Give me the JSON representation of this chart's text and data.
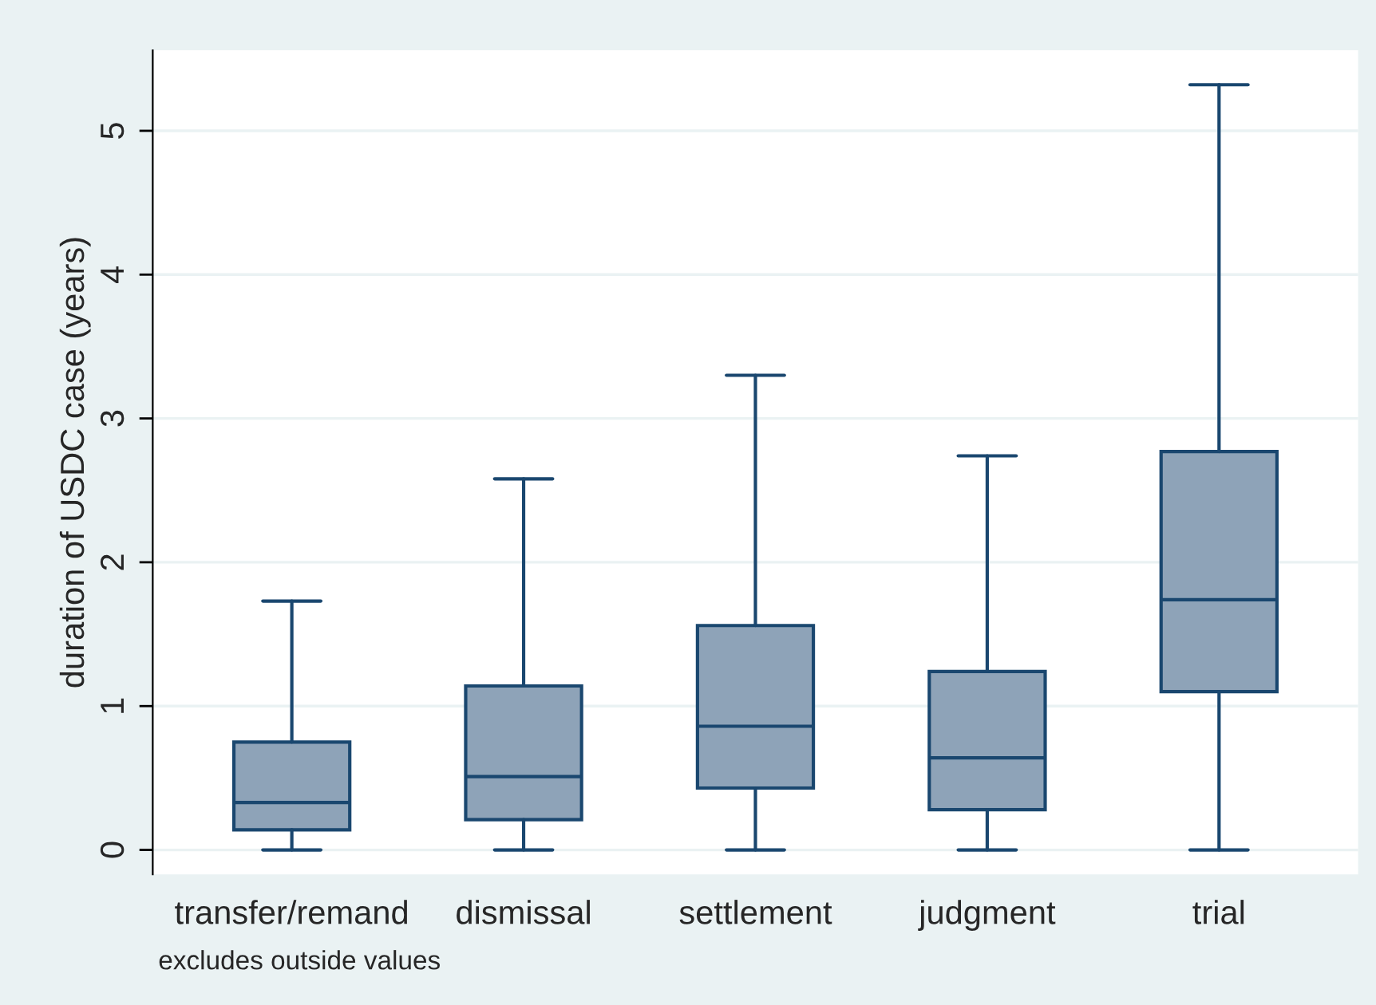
{
  "chart_data": {
    "type": "box",
    "ylabel": "duration of USDC case (years)",
    "categories": [
      "transfer/remand",
      "dismissal",
      "settlement",
      "judgment",
      "trial"
    ],
    "boxes": [
      {
        "low": 0,
        "q1": 0.14,
        "median": 0.33,
        "q3": 0.75,
        "high": 1.73
      },
      {
        "low": 0,
        "q1": 0.21,
        "median": 0.51,
        "q3": 1.14,
        "high": 2.58
      },
      {
        "low": 0,
        "q1": 0.43,
        "median": 0.86,
        "q3": 1.56,
        "high": 3.3
      },
      {
        "low": 0,
        "q1": 0.28,
        "median": 0.64,
        "q3": 1.24,
        "high": 2.74
      },
      {
        "low": 0,
        "q1": 1.1,
        "median": 1.74,
        "q3": 2.77,
        "high": 5.32
      }
    ],
    "color": "#8ea3b8",
    "ylim": [
      -0.17,
      5.56
    ],
    "yticks": [
      0,
      1,
      2,
      3,
      4,
      5
    ],
    "grid": "y",
    "annotations": [
      "excludes outside values"
    ]
  }
}
